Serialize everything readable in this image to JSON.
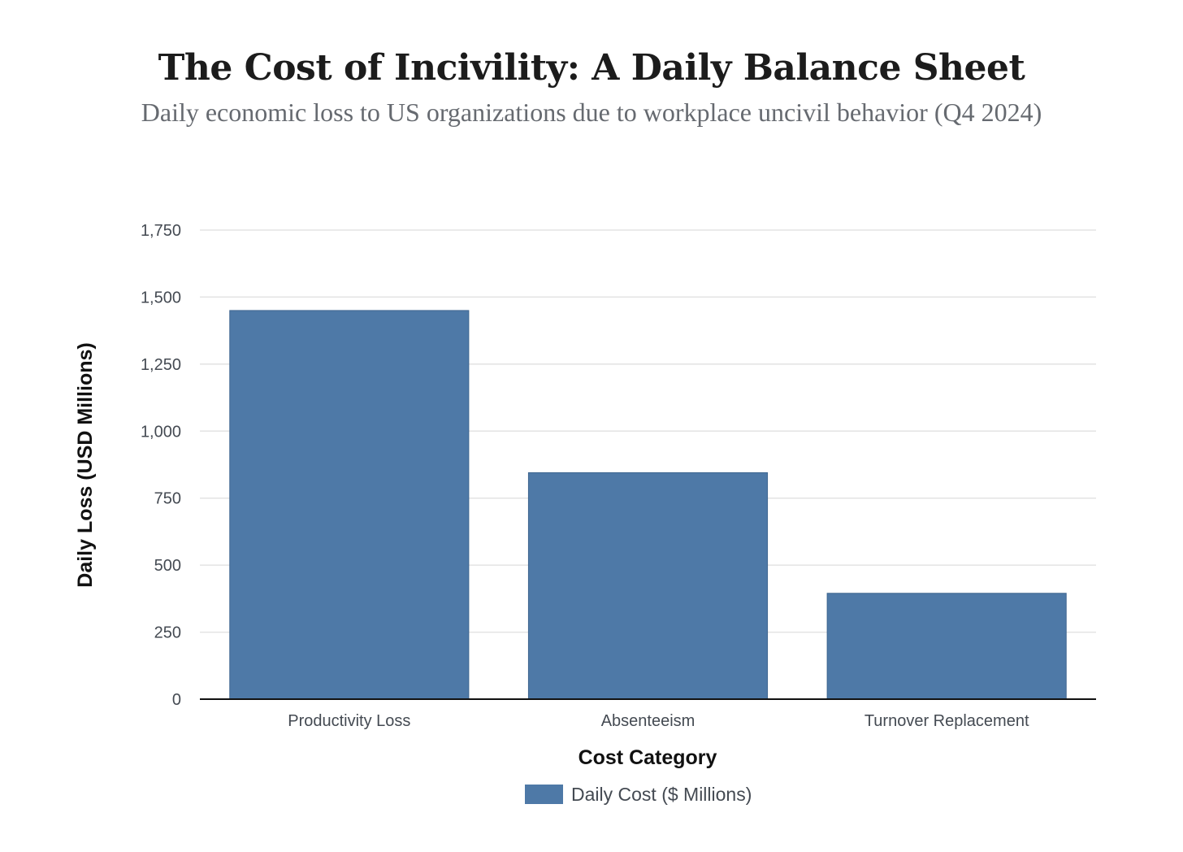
{
  "title": "The Cost of Incivility: A Daily Balance Sheet",
  "subtitle": "Daily economic loss to US organizations due to workplace uncivil behavior (Q4 2024)",
  "chart_data": {
    "type": "bar",
    "title": "The Cost of Incivility: A Daily Balance Sheet",
    "subtitle": "Daily economic loss to US organizations due to workplace uncivil behavior (Q4 2024)",
    "categories": [
      "Productivity Loss",
      "Absenteeism",
      "Turnover Replacement"
    ],
    "series": [
      {
        "name": "Daily Cost ($ Millions)",
        "values": [
          1450,
          845,
          395
        ],
        "color": "#4e79a7"
      }
    ],
    "xlabel": "Cost Category",
    "ylabel": "Daily Loss (USD Millions)",
    "ylim": [
      0,
      1750
    ],
    "yticks": [
      0,
      250,
      500,
      750,
      1000,
      1250,
      1500,
      1750
    ],
    "ytick_labels": [
      "0",
      "250",
      "500",
      "750",
      "1,000",
      "1,250",
      "1,500",
      "1,750"
    ],
    "grid": true,
    "legend_position": "bottom-center",
    "colors": {
      "bar": "#4e79a7",
      "grid": "#e3e3e3",
      "axis": "#111111"
    }
  }
}
